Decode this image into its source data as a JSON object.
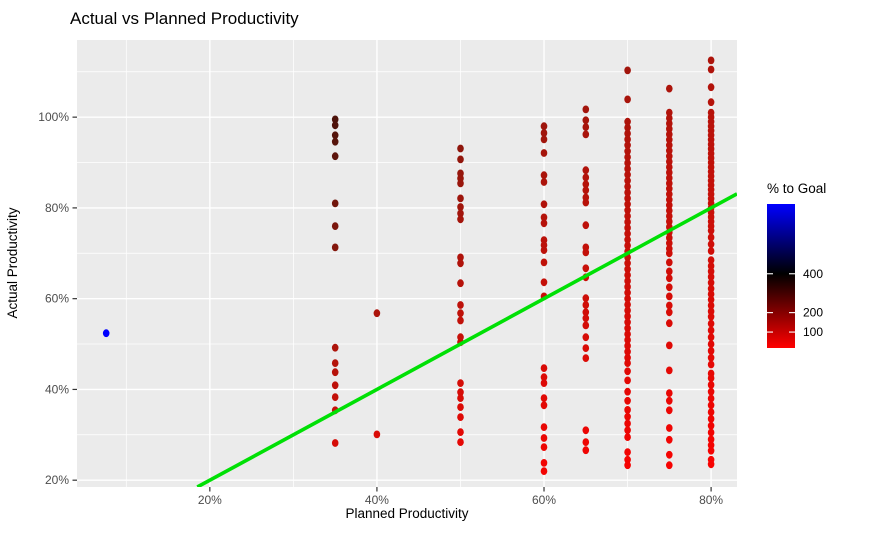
{
  "chart_data": {
    "type": "scatter",
    "title": "Actual vs Planned Productivity",
    "xlabel": "Planned Productivity",
    "ylabel": "Actual Productivity",
    "x_ticks": {
      "values": [
        20,
        40,
        60,
        80
      ],
      "labels": [
        "20%",
        "40%",
        "60%",
        "80%"
      ],
      "minor": [
        10,
        30,
        50,
        70
      ]
    },
    "y_ticks": {
      "values": [
        20,
        40,
        60,
        80,
        100
      ],
      "labels": [
        "20%",
        "40%",
        "60%",
        "80%",
        "100%"
      ],
      "minor": [
        30,
        50,
        70,
        90,
        110
      ]
    },
    "x_domain": [
      4.1,
      83.1
    ],
    "y_domain": [
      18.5,
      117.0
    ],
    "grid": true,
    "legend_position": "right",
    "panel_bg": "#EBEBEB",
    "grid_color": "#FFFFFF",
    "axis_text_color": "#4D4D4D",
    "tick_mark_color": "#333333",
    "reference_line": {
      "type": "identity",
      "equation": "y = x",
      "color": "#00E005",
      "x_start": 18.5,
      "x_end": 83.1
    },
    "color_legend": {
      "title": "% to Goal",
      "tick_values": [
        400,
        200,
        100
      ],
      "domain": [
        18,
        759
      ],
      "midpoint": 400,
      "low_color": "#FF0000",
      "mid_color": "#000000",
      "high_color": "#0000FF"
    },
    "color_encoding": "percent_to_goal = actual / planned * 100",
    "series": [
      {
        "planned": 7.6,
        "actual": [
          52.4
        ]
      },
      {
        "planned": 35,
        "actual": [
          99.5,
          98.2,
          96.0,
          94.6,
          91.4,
          81.0,
          76.0,
          71.3,
          49.2,
          45.8,
          43.8,
          40.9,
          38.3,
          35.4,
          28.2
        ]
      },
      {
        "planned": 40,
        "actual": [
          56.8,
          30.1
        ]
      },
      {
        "planned": 50,
        "actual": [
          93.1,
          90.7,
          87.6,
          86.5,
          85.4,
          82.1,
          80.2,
          78.8,
          77.5,
          69.1,
          67.8,
          63.4,
          58.6,
          56.8,
          55.2,
          51.5,
          50.4,
          41.4,
          39.4,
          38.1,
          36.1,
          33.9,
          30.6,
          28.4
        ]
      },
      {
        "planned": 60,
        "actual": [
          98.0,
          96.5,
          95.1,
          92.1,
          87.2,
          85.7,
          80.8,
          77.9,
          76.6,
          72.9,
          71.8,
          70.7,
          68.0,
          63.6,
          60.5,
          44.7,
          42.7,
          41.4,
          38.1,
          36.5,
          31.7,
          29.3,
          27.3,
          23.8,
          22.0
        ]
      },
      {
        "planned": 65,
        "actual": [
          101.7,
          99.3,
          97.8,
          96.2,
          88.3,
          86.7,
          85.2,
          83.9,
          82.3,
          81.2,
          76.2,
          71.3,
          70.2,
          66.7,
          64.7,
          60.1,
          58.6,
          57.0,
          55.7,
          54.1,
          51.5,
          49.1,
          46.9,
          31.0,
          28.4,
          26.6
        ]
      },
      {
        "planned": 70,
        "actual": [
          110.3,
          103.9,
          99.0,
          97.7,
          96.4,
          95.1,
          93.8,
          92.5,
          91.2,
          89.9,
          88.6,
          87.3,
          86.0,
          84.7,
          83.4,
          82.1,
          80.8,
          79.5,
          78.2,
          76.9,
          75.6,
          74.3,
          73.0,
          71.7,
          70.4,
          69.1,
          67.8,
          66.5,
          65.2,
          63.9,
          62.6,
          61.3,
          60.0,
          58.7,
          57.4,
          56.1,
          54.8,
          53.5,
          52.2,
          50.9,
          49.6,
          48.3,
          47.0,
          45.8,
          44.0,
          42.0,
          39.5,
          37.5,
          35.5,
          34.0,
          32.5,
          31.0,
          29.5,
          26.2,
          24.5,
          23.3
        ]
      },
      {
        "planned": 75,
        "actual": [
          106.3,
          101.0,
          99.8,
          98.6,
          97.4,
          96.2,
          95.0,
          93.8,
          92.6,
          91.4,
          90.2,
          89.0,
          87.8,
          86.6,
          85.4,
          84.2,
          83.0,
          81.8,
          80.6,
          79.4,
          78.2,
          77.0,
          75.8,
          74.6,
          73.4,
          72.2,
          71.0,
          70.0,
          68.0,
          66.0,
          64.5,
          62.5,
          60.5,
          58.5,
          57.0,
          54.6,
          49.7,
          44.2,
          39.2,
          37.5,
          35.4,
          31.5,
          28.9,
          25.6,
          23.3
        ]
      },
      {
        "planned": 80,
        "actual": [
          112.5,
          110.5,
          106.6,
          103.3,
          101.0,
          100.0,
          99.0,
          98.0,
          97.0,
          96.0,
          95.0,
          94.0,
          93.0,
          92.0,
          91.0,
          90.0,
          89.0,
          88.0,
          87.0,
          86.0,
          85.0,
          84.0,
          83.0,
          82.0,
          81.0,
          80.0,
          79.0,
          78.0,
          77.0,
          76.0,
          75.0,
          73.5,
          72.0,
          70.5,
          68.5,
          67.2,
          66.0,
          64.8,
          63.5,
          62.2,
          61.0,
          59.8,
          58.5,
          57.2,
          56.0,
          54.5,
          53.0,
          51.5,
          50.0,
          48.5,
          47.0,
          45.5,
          43.5,
          42.5,
          41.0,
          39.5,
          38.0,
          36.5,
          35.0,
          33.5,
          32.0,
          30.5,
          29.0,
          27.7,
          26.5,
          24.5,
          23.5
        ]
      }
    ]
  }
}
